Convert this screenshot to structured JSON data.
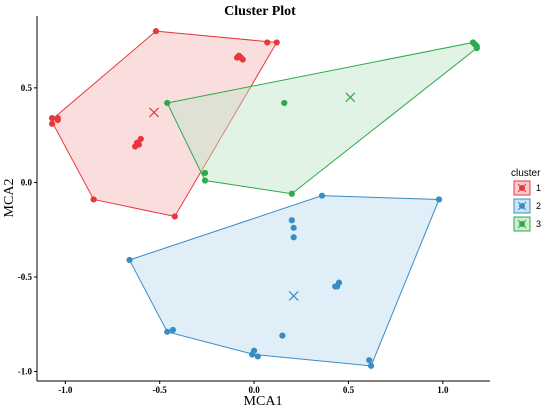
{
  "chart_data": {
    "type": "scatter",
    "title": "Cluster Plot",
    "xlabel": "MCA1",
    "ylabel": "MCA2",
    "xlim": [
      -1.15,
      1.25
    ],
    "ylim": [
      -1.05,
      0.88
    ],
    "x_ticks": [
      -1.0,
      -0.5,
      0.0,
      0.5,
      1.0
    ],
    "x_tick_labels": [
      "-1.0",
      "-0.5",
      "0.0",
      "0.5",
      "1.0"
    ],
    "y_ticks": [
      -1.0,
      -0.5,
      0.0,
      0.5
    ],
    "y_tick_labels": [
      "-1.0",
      "-0.5",
      "0.0",
      "0.5"
    ],
    "grid": false,
    "legend": {
      "title": "cluster",
      "position": "right"
    },
    "series": [
      {
        "name": "1",
        "color": "#E8383D",
        "fill": "#F4B6B6",
        "centroid": [
          -0.53,
          0.37
        ],
        "hull": [
          [
            -0.52,
            0.8
          ],
          [
            0.12,
            0.74
          ],
          [
            -0.42,
            -0.18
          ],
          [
            -0.85,
            -0.09
          ],
          [
            -1.07,
            0.32
          ],
          [
            -1.05,
            0.35
          ]
        ],
        "points": [
          [
            -0.52,
            0.8
          ],
          [
            -1.07,
            0.34
          ],
          [
            -1.07,
            0.31
          ],
          [
            -1.04,
            0.33
          ],
          [
            -1.04,
            0.34
          ],
          [
            -0.6,
            0.23
          ],
          [
            -0.62,
            0.21
          ],
          [
            -0.63,
            0.19
          ],
          [
            -0.61,
            0.2
          ],
          [
            -0.09,
            0.66
          ],
          [
            -0.07,
            0.66
          ],
          [
            -0.08,
            0.67
          ],
          [
            -0.06,
            0.65
          ],
          [
            0.07,
            0.74
          ],
          [
            0.12,
            0.74
          ],
          [
            -0.85,
            -0.09
          ],
          [
            -0.42,
            -0.18
          ]
        ]
      },
      {
        "name": "2",
        "color": "#3A8DC4",
        "fill": "#BBD9EE",
        "centroid": [
          0.21,
          -0.6
        ],
        "hull": [
          [
            0.36,
            -0.07
          ],
          [
            0.98,
            -0.09
          ],
          [
            0.62,
            -0.97
          ],
          [
            0.0,
            -0.91
          ],
          [
            -0.46,
            -0.79
          ],
          [
            -0.66,
            -0.41
          ]
        ],
        "points": [
          [
            0.36,
            -0.07
          ],
          [
            0.98,
            -0.09
          ],
          [
            0.2,
            -0.2
          ],
          [
            0.21,
            -0.24
          ],
          [
            0.21,
            -0.29
          ],
          [
            -0.66,
            -0.41
          ],
          [
            0.43,
            -0.55
          ],
          [
            0.45,
            -0.53
          ],
          [
            0.44,
            -0.55
          ],
          [
            -0.46,
            -0.79
          ],
          [
            -0.43,
            -0.78
          ],
          [
            0.15,
            -0.81
          ],
          [
            0.0,
            -0.89
          ],
          [
            -0.01,
            -0.91
          ],
          [
            0.02,
            -0.92
          ],
          [
            0.61,
            -0.94
          ],
          [
            0.62,
            -0.97
          ]
        ]
      },
      {
        "name": "3",
        "color": "#2DAA4A",
        "fill": "#BDE5C5",
        "centroid": [
          0.51,
          0.45
        ],
        "hull": [
          [
            1.16,
            0.74
          ],
          [
            1.18,
            0.71
          ],
          [
            0.2,
            -0.06
          ],
          [
            -0.26,
            0.01
          ],
          [
            -0.46,
            0.42
          ]
        ],
        "points": [
          [
            1.16,
            0.74
          ],
          [
            1.17,
            0.73
          ],
          [
            1.18,
            0.72
          ],
          [
            1.18,
            0.71
          ],
          [
            -0.46,
            0.42
          ],
          [
            0.16,
            0.42
          ],
          [
            -0.26,
            0.05
          ],
          [
            -0.26,
            0.01
          ],
          [
            0.2,
            -0.06
          ]
        ]
      }
    ]
  }
}
